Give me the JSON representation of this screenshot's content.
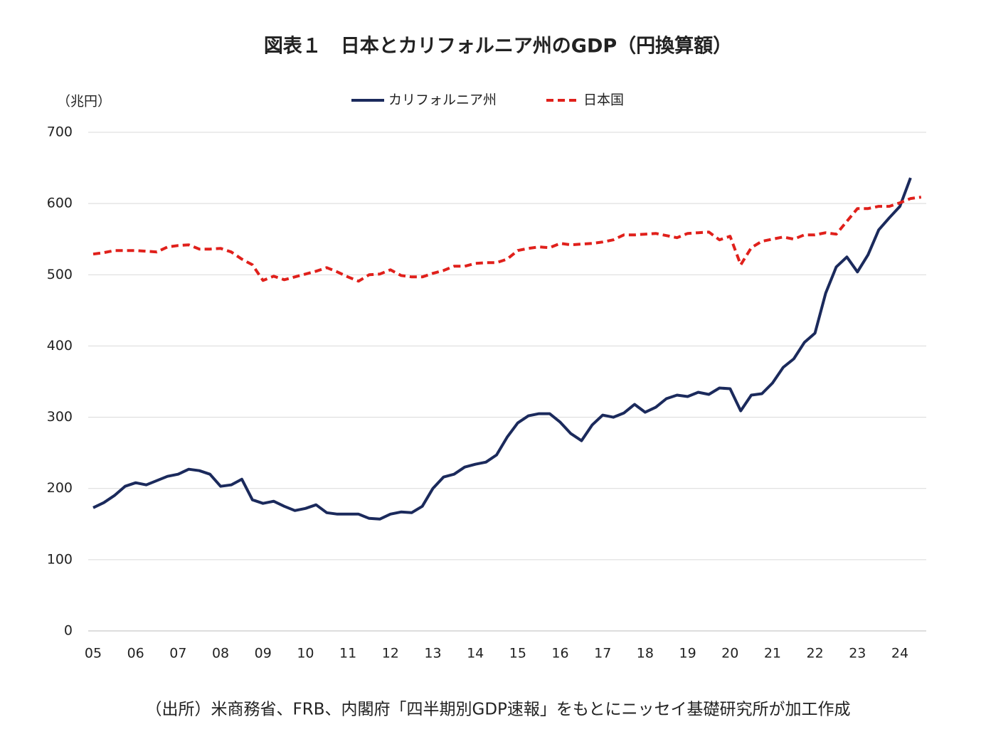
{
  "chart_data": {
    "type": "line",
    "title": "図表１　日本とカリフォルニア州のGDP（円換算額）",
    "y_label": "（兆円）",
    "source": "（出所）米商務省、FRB、内閣府「四半期別GDP速報」をもとにニッセイ基礎研究所が加工作成",
    "categories": [
      "05",
      null,
      null,
      null,
      "06",
      null,
      null,
      null,
      "07",
      null,
      null,
      null,
      "08",
      null,
      null,
      null,
      "09",
      null,
      null,
      null,
      "10",
      null,
      null,
      null,
      "11",
      null,
      null,
      null,
      "12",
      null,
      null,
      null,
      "13",
      null,
      null,
      null,
      "14",
      null,
      null,
      null,
      "15",
      null,
      null,
      null,
      "16",
      null,
      null,
      null,
      "17",
      null,
      null,
      null,
      "18",
      null,
      null,
      null,
      "19",
      null,
      null,
      null,
      "20",
      null,
      null,
      null,
      "21",
      null,
      null,
      null,
      "22",
      null,
      null,
      null,
      "23",
      null,
      null,
      null,
      "24",
      null,
      null
    ],
    "series": [
      {
        "name": "カリフォルニア州",
        "color": "#1b2a5c",
        "line_style": "solid",
        "values": [
          173,
          180,
          190,
          203,
          208,
          205,
          211,
          217,
          220,
          227,
          225,
          220,
          203,
          205,
          213,
          184,
          179,
          182,
          175,
          169,
          172,
          177,
          166,
          164,
          164,
          164,
          158,
          157,
          164,
          167,
          166,
          175,
          200,
          216,
          220,
          230,
          234,
          237,
          247,
          272,
          292,
          302,
          305,
          305,
          293,
          277,
          267,
          289,
          303,
          300,
          306,
          318,
          307,
          314,
          326,
          331,
          329,
          335,
          332,
          341,
          340,
          309,
          331,
          333,
          348,
          370,
          382,
          405,
          418,
          474,
          511,
          525,
          504,
          528,
          563,
          580,
          596,
          636,
          null
        ]
      },
      {
        "name": "日本国",
        "color": "#e0201b",
        "line_style": "dashed",
        "values": [
          529,
          531,
          534,
          534,
          534,
          533,
          532,
          539,
          541,
          542,
          536,
          536,
          537,
          532,
          522,
          514,
          492,
          498,
          493,
          497,
          501,
          505,
          510,
          504,
          497,
          491,
          500,
          501,
          507,
          499,
          497,
          497,
          502,
          506,
          512,
          512,
          516,
          517,
          517,
          522,
          534,
          537,
          539,
          538,
          544,
          542,
          543,
          544,
          546,
          549,
          556,
          556,
          557,
          558,
          555,
          552,
          558,
          559,
          560,
          549,
          554,
          514,
          538,
          547,
          550,
          553,
          550,
          556,
          556,
          559,
          557,
          575,
          593,
          593,
          596,
          596,
          601,
          607,
          609
        ]
      }
    ],
    "ylim": [
      0,
      700
    ],
    "yticks": [
      0,
      100,
      200,
      300,
      400,
      500,
      600,
      700
    ],
    "grid": true,
    "legend": "top"
  }
}
